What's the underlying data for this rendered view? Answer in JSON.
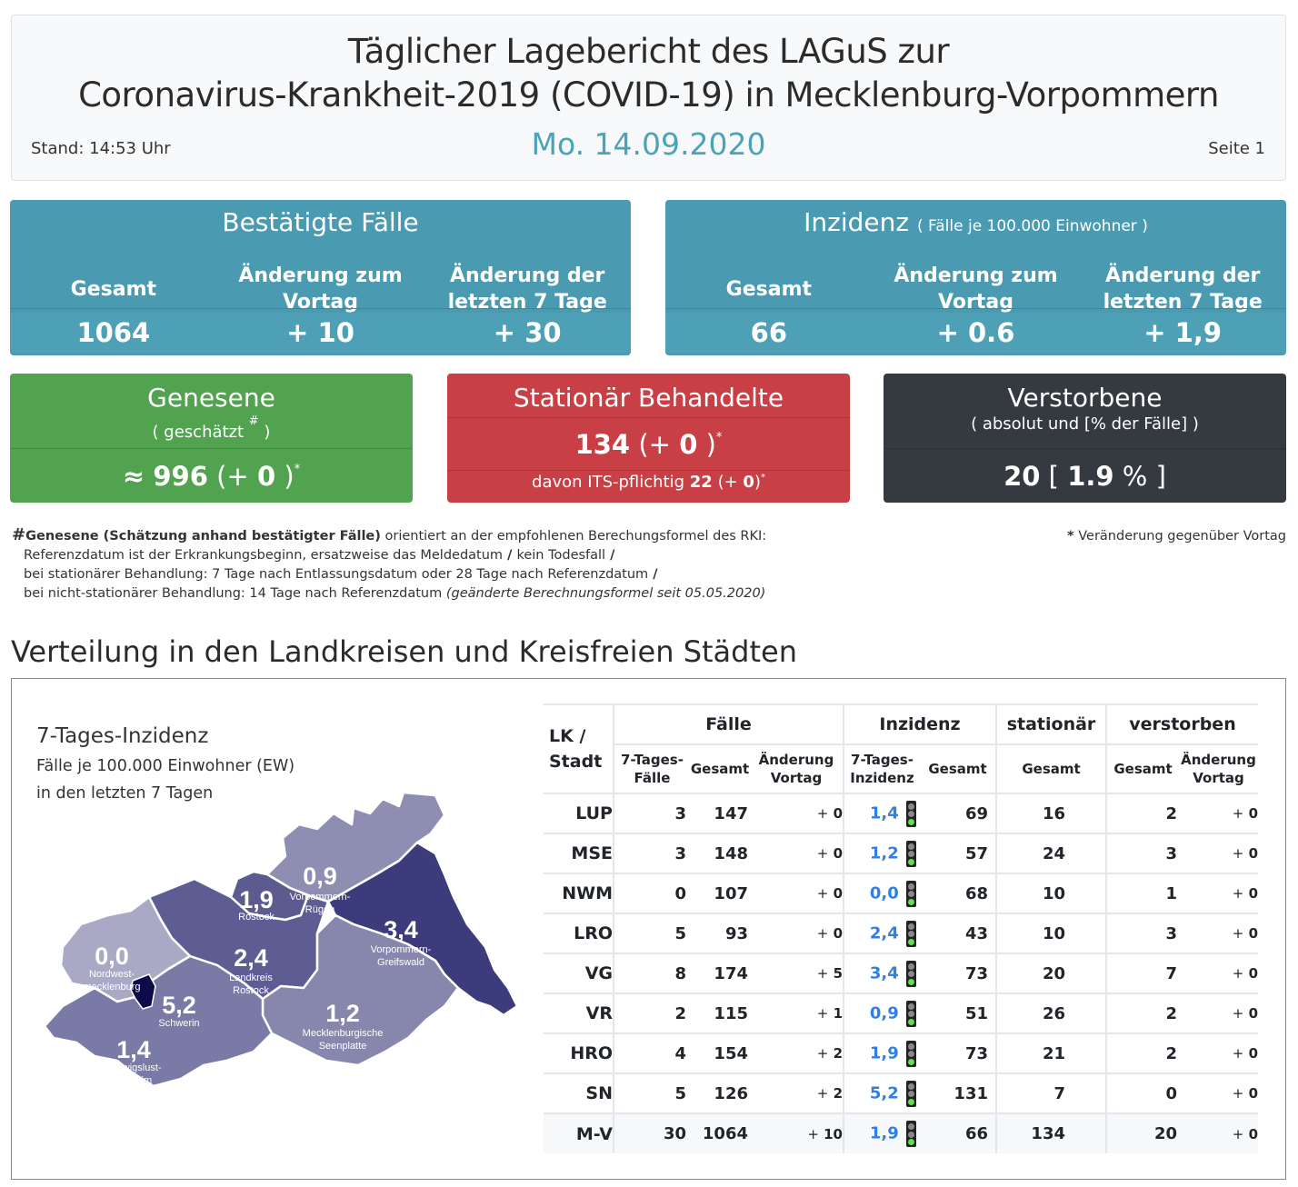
{
  "header": {
    "title_line1": "Täglicher Lagebericht des LAGuS zur",
    "title_line2": "Coronavirus-Krankheit-2019 (COVID-19) in Mecklenburg-Vorpommern",
    "stand": "Stand: 14:53 Uhr",
    "date": "Mo. 14.09.2020",
    "page": "Seite 1"
  },
  "confirmed": {
    "title": "Bestätigte Fälle",
    "col_total": "Gesamt",
    "col_prev_day": "Änderung zum Vortag",
    "col_7days": "Änderung der letzten 7 Tage",
    "total": "1064",
    "prev_day": "+ 10",
    "days7": "+ 30"
  },
  "incidence": {
    "title": "Inzidenz",
    "subtitle": "( Fälle je 100.000 Einwohner )",
    "col_total": "Gesamt",
    "col_prev_day": "Änderung zum Vortag",
    "col_7days": "Änderung der letzten 7 Tage",
    "total": "66",
    "prev_day": "+ 0.6",
    "days7": "+ 1,9"
  },
  "recovered": {
    "title": "Genesene",
    "subtitle_pre": "( geschätzt ",
    "subtitle_mark": "#",
    "subtitle_post": " )",
    "approx": "≈",
    "value": "996",
    "change_open": "(+",
    "change": "0",
    "change_close": ")",
    "star": "*"
  },
  "hospital": {
    "title": "Stationär Behandelte",
    "value": "134",
    "change_open": "(+",
    "change": "0",
    "change_close": ")",
    "star": "*",
    "its_label": "davon ITS-pflichtig",
    "its_value": "22",
    "its_change_open": "(+",
    "its_change": "0",
    "its_change_close": ")",
    "its_star": "*"
  },
  "deaths": {
    "title": "Verstorbene",
    "subtitle": "( absolut und [% der Fälle] )",
    "value": "20",
    "bracket_open": "[",
    "percent": "1.9",
    "percent_sign": "%",
    "bracket_close": "]"
  },
  "footnote": {
    "hash": "#",
    "bold": "Genesene (Schätzung anhand bestätigter Fälle)",
    "line1_rest": " orientiert an der empfohlenen Berechungsformel des RKI:",
    "line2": "Referenzdatum ist der Erkrankungsbeginn, ersatzweise das Meldedatum",
    "line2_b": " / ",
    "line2_rest": "kein Todesfall",
    "line2_end": " /",
    "line3": "bei stationärer Behandlung: 7 Tage nach Entlassungsdatum oder 28 Tage nach Referenzdatum",
    "line3_end": " /",
    "line4": "bei nicht-stationärer Behandlung: 14 Tage nach Referenzdatum ",
    "line4_italic": "(geänderte Berechnungsformel seit 05.05.2020)",
    "star_note_mark": "*",
    "star_note": " Veränderung gegenüber Vortag"
  },
  "section": {
    "title": "Verteilung in den Landkreisen und Kreisfreien Städten"
  },
  "map": {
    "title": "7-Tages-Inzidenz",
    "subtitle1": "Fälle je 100.000 Einwohner (EW)",
    "subtitle2": "in den letzten 7 Tagen",
    "regions": [
      {
        "id": "nwm",
        "value": "0,0",
        "label1": "Nordwest-",
        "label2": "mecklenburg",
        "color": "#a9a9c6"
      },
      {
        "id": "hro",
        "value": "1,9",
        "label1": "Rostock",
        "label2": "",
        "color": "#5b5b90"
      },
      {
        "id": "vr",
        "value": "0,9",
        "label1": "Vorpommern-",
        "label2": "Rügen",
        "color": "#8e8eb2"
      },
      {
        "id": "lro",
        "value": "2,4",
        "label1": "Landkreis",
        "label2": "Rostock",
        "color": "#5d5d93"
      },
      {
        "id": "vg",
        "value": "3,4",
        "label1": "Vorpommern-",
        "label2": "Greifswald",
        "color": "#3c3c7c"
      },
      {
        "id": "sn",
        "value": "5,2",
        "label1": "Schwerin",
        "label2": "",
        "color": "#0c0c4a"
      },
      {
        "id": "lup",
        "value": "1,4",
        "label1": "Ludwigslust-",
        "label2": "Parchim",
        "color": "#7a7aa6"
      },
      {
        "id": "mse",
        "value": "1,2",
        "label1": "Mecklenburgische",
        "label2": "Seenplatte",
        "color": "#8787ad"
      }
    ]
  },
  "table": {
    "h_lk1": "LK /",
    "h_lk2": "Stadt",
    "h_faelle": "Fälle",
    "h_inzidenz": "Inzidenz",
    "h_stationaer": "stationär",
    "h_verstorben": "verstorben",
    "sh_7tf1": "7-Tages-",
    "sh_7tf2": "Fälle",
    "sh_gesamt": "Gesamt",
    "sh_aend1": "Änderung",
    "sh_aend2": "Vortag",
    "sh_7ti1": "7-Tages-",
    "sh_7ti2": "Inzidenz",
    "rows": [
      {
        "name": "LUP",
        "f7": "3",
        "fg": "147",
        "fa": "0",
        "i7": "1,4",
        "ig": "69",
        "sg": "16",
        "vg": "2",
        "va": "0",
        "light": "green"
      },
      {
        "name": "MSE",
        "f7": "3",
        "fg": "148",
        "fa": "0",
        "i7": "1,2",
        "ig": "57",
        "sg": "24",
        "vg": "3",
        "va": "0",
        "light": "green"
      },
      {
        "name": "NWM",
        "f7": "0",
        "fg": "107",
        "fa": "0",
        "i7": "0,0",
        "ig": "68",
        "sg": "10",
        "vg": "1",
        "va": "0",
        "light": "green"
      },
      {
        "name": "LRO",
        "f7": "5",
        "fg": "93",
        "fa": "0",
        "i7": "2,4",
        "ig": "43",
        "sg": "10",
        "vg": "3",
        "va": "0",
        "light": "green"
      },
      {
        "name": "VG",
        "f7": "8",
        "fg": "174",
        "fa": "5",
        "i7": "3,4",
        "ig": "73",
        "sg": "20",
        "vg": "7",
        "va": "0",
        "light": "green"
      },
      {
        "name": "VR",
        "f7": "2",
        "fg": "115",
        "fa": "1",
        "i7": "0,9",
        "ig": "51",
        "sg": "26",
        "vg": "2",
        "va": "0",
        "light": "green"
      },
      {
        "name": "HRO",
        "f7": "4",
        "fg": "154",
        "fa": "2",
        "i7": "1,9",
        "ig": "73",
        "sg": "21",
        "vg": "2",
        "va": "0",
        "light": "green"
      },
      {
        "name": "SN",
        "f7": "5",
        "fg": "126",
        "fa": "2",
        "i7": "5,2",
        "ig": "131",
        "sg": "7",
        "vg": "0",
        "va": "0",
        "light": "green"
      }
    ],
    "total": {
      "name": "M-V",
      "f7": "30",
      "fg": "1064",
      "fa": "10",
      "i7": "1,9",
      "ig": "66",
      "sg": "134",
      "vg": "20",
      "va": "0",
      "light": "green"
    },
    "plus": "+"
  },
  "colors": {
    "teal": "#4a9bb2",
    "green": "#52a34f",
    "red": "#c84045",
    "dark": "#343a40",
    "date_accent": "#4aa3b8",
    "link_blue": "#2f7fe6",
    "light_on": "#5ee04b"
  }
}
